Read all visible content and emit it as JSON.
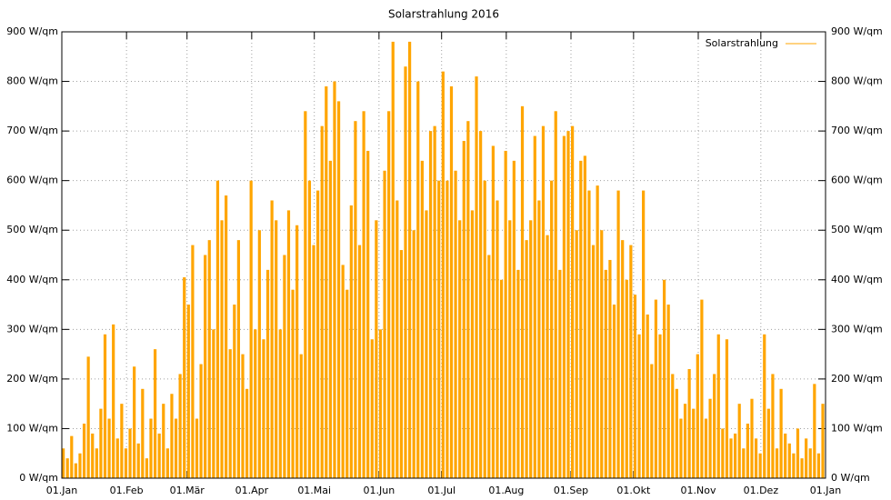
{
  "chart_data": {
    "type": "impulse",
    "title": "Solarstrahlung 2016",
    "series": [
      {
        "name": "Solarstrahlung",
        "color": "#ffa500",
        "x": [
          0,
          2,
          4,
          6,
          8,
          10,
          12,
          14,
          16,
          18,
          20,
          22,
          24,
          26,
          28,
          30,
          32,
          34,
          36,
          38,
          40,
          42,
          44,
          46,
          48,
          50,
          52,
          54,
          56,
          58,
          60,
          62,
          64,
          66,
          68,
          70,
          72,
          74,
          76,
          78,
          80,
          82,
          84,
          86,
          88,
          90,
          92,
          94,
          96,
          98,
          100,
          102,
          104,
          106,
          108,
          110,
          112,
          114,
          116,
          118,
          120,
          122,
          124,
          126,
          128,
          130,
          132,
          134,
          136,
          138,
          140,
          142,
          144,
          146,
          148,
          150,
          152,
          154,
          156,
          158,
          160,
          162,
          164,
          166,
          168,
          170,
          172,
          174,
          176,
          178,
          180,
          182,
          184,
          186,
          188,
          190,
          192,
          194,
          196,
          198,
          200,
          202,
          204,
          206,
          208,
          210,
          212,
          214,
          216,
          218,
          220,
          222,
          224,
          226,
          228,
          230,
          232,
          234,
          236,
          238,
          240,
          242,
          244,
          246,
          248,
          250,
          252,
          254,
          256,
          258,
          260,
          262,
          264,
          266,
          268,
          270,
          272,
          274,
          276,
          278,
          280,
          282,
          284,
          286,
          288,
          290,
          292,
          294,
          296,
          298,
          300,
          302,
          304,
          306,
          308,
          310,
          312,
          314,
          316,
          318,
          320,
          322,
          324,
          326,
          328,
          330,
          332,
          334,
          336,
          338,
          340,
          342,
          344,
          346,
          348,
          350,
          352,
          354,
          356,
          358,
          360,
          362,
          364
        ],
        "values": [
          60,
          40,
          85,
          30,
          50,
          110,
          245,
          90,
          60,
          140,
          290,
          120,
          310,
          80,
          150,
          60,
          100,
          225,
          70,
          180,
          40,
          120,
          260,
          90,
          150,
          60,
          170,
          120,
          210,
          405,
          350,
          470,
          120,
          230,
          450,
          480,
          300,
          600,
          520,
          570,
          260,
          350,
          480,
          250,
          180,
          600,
          300,
          500,
          280,
          420,
          560,
          520,
          300,
          450,
          540,
          380,
          510,
          250,
          740,
          600,
          470,
          580,
          710,
          790,
          640,
          800,
          760,
          430,
          380,
          550,
          720,
          470,
          740,
          660,
          280,
          520,
          300,
          620,
          740,
          880,
          560,
          460,
          830,
          880,
          500,
          800,
          640,
          540,
          700,
          710,
          600,
          820,
          600,
          790,
          620,
          520,
          680,
          720,
          540,
          810,
          700,
          600,
          450,
          670,
          560,
          400,
          660,
          520,
          640,
          420,
          750,
          480,
          520,
          690,
          560,
          710,
          490,
          600,
          740,
          420,
          690,
          700,
          710,
          500,
          640,
          650,
          580,
          470,
          590,
          500,
          420,
          440,
          350,
          580,
          480,
          400,
          470,
          370,
          290,
          580,
          330,
          230,
          360,
          290,
          400,
          350,
          210,
          180,
          120,
          150,
          220,
          140,
          250,
          360,
          120,
          160,
          210,
          290,
          100,
          280,
          80,
          90,
          150,
          60,
          110,
          160,
          80,
          50,
          290,
          140,
          210,
          60,
          180,
          90,
          70,
          50,
          100,
          40,
          80,
          60,
          190,
          50,
          150
        ]
      }
    ],
    "xlim": [
      0,
      366
    ],
    "xticks": [
      {
        "value": 0,
        "label": "01.Jan"
      },
      {
        "value": 31,
        "label": "01.Feb"
      },
      {
        "value": 60,
        "label": "01.Mär"
      },
      {
        "value": 91,
        "label": "01.Apr"
      },
      {
        "value": 121,
        "label": "01.Mai"
      },
      {
        "value": 152,
        "label": "01.Jun"
      },
      {
        "value": 182,
        "label": "01.Jul"
      },
      {
        "value": 213,
        "label": "01.Aug"
      },
      {
        "value": 244,
        "label": "01.Sep"
      },
      {
        "value": 274,
        "label": "01.Okt"
      },
      {
        "value": 305,
        "label": "01.Nov"
      },
      {
        "value": 335,
        "label": "01.Dez"
      },
      {
        "value": 366,
        "label": "01.Jan"
      }
    ],
    "ylim": [
      0,
      900
    ],
    "yticks": [
      {
        "value": 0,
        "label": "0 W/qm"
      },
      {
        "value": 100,
        "label": "100 W/qm"
      },
      {
        "value": 200,
        "label": "200 W/qm"
      },
      {
        "value": 300,
        "label": "300 W/qm"
      },
      {
        "value": 400,
        "label": "400 W/qm"
      },
      {
        "value": 500,
        "label": "500 W/qm"
      },
      {
        "value": 600,
        "label": "600 W/qm"
      },
      {
        "value": 700,
        "label": "700 W/qm"
      },
      {
        "value": 800,
        "label": "800 W/qm"
      },
      {
        "value": 900,
        "label": "900 W/qm"
      }
    ],
    "grid": true,
    "legend": "top-right"
  }
}
